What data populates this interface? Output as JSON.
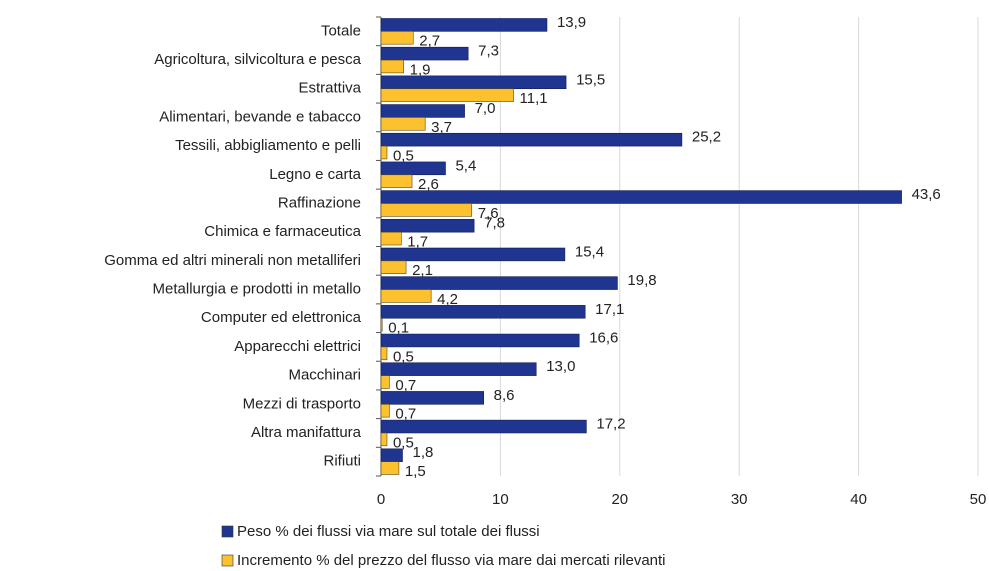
{
  "chart_data": {
    "type": "bar",
    "orientation": "horizontal",
    "categories": [
      "Totale",
      "Agricoltura, silvicoltura e pesca",
      "Estrattiva",
      "Alimentari, bevande e tabacco",
      "Tessili, abbigliamento e pelli",
      "Legno e carta",
      "Raffinazione",
      "Chimica e farmaceutica",
      "Gomma ed altri minerali non metalliferi",
      "Metallurgia e prodotti in metallo",
      "Computer ed elettronica",
      "Apparecchi elettrici",
      "Macchinari",
      "Mezzi di trasporto",
      "Altra manifattura",
      "Rifiuti"
    ],
    "series": [
      {
        "name": "Peso % dei flussi via mare sul totale dei flussi",
        "color": "#203590",
        "values": [
          13.9,
          7.3,
          15.5,
          7.0,
          25.2,
          5.4,
          43.6,
          7.8,
          15.4,
          19.8,
          17.1,
          16.6,
          13.0,
          8.6,
          17.2,
          1.8
        ],
        "value_labels": [
          "13,9",
          "7,3",
          "15,5",
          "7,0",
          "25,2",
          "5,4",
          "43,6",
          "7,8",
          "15,4",
          "19,8",
          "17,1",
          "16,6",
          "13,0",
          "8,6",
          "17,2",
          "1,8"
        ]
      },
      {
        "name": "Incremento % del prezzo del flusso via mare dai mercati rilevanti",
        "color": "#fdc130",
        "values": [
          2.7,
          1.9,
          11.1,
          3.7,
          0.5,
          2.6,
          7.6,
          1.7,
          2.1,
          4.2,
          0.1,
          0.5,
          0.7,
          0.7,
          0.5,
          1.5
        ],
        "value_labels": [
          "2,7",
          "1,9",
          "11,1",
          "3,7",
          "0,5",
          "2,6",
          "7,6",
          "1,7",
          "2,1",
          "4,2",
          "0,1",
          "0,5",
          "0,7",
          "0,7",
          "0,5",
          "1,5"
        ]
      }
    ],
    "xlim": [
      0,
      50
    ],
    "xticks": [
      0,
      10,
      20,
      30,
      40,
      50
    ],
    "grid": true,
    "legend": "bottom"
  }
}
